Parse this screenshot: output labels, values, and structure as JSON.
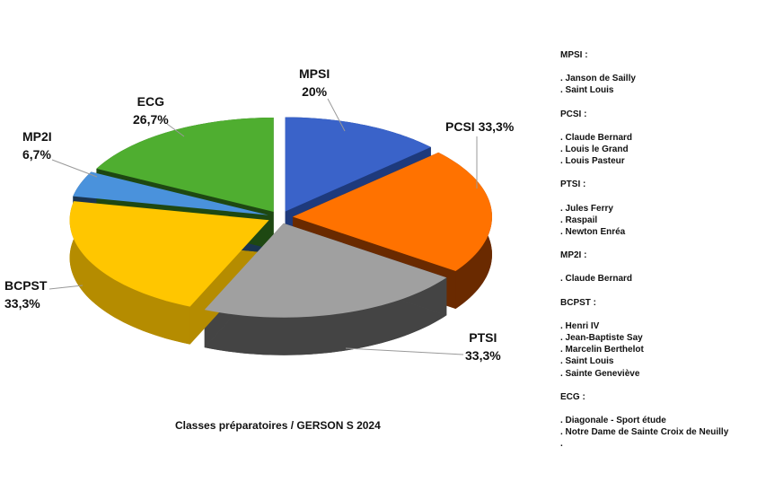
{
  "chart_data": {
    "type": "pie",
    "style": "3d-exploded",
    "title": "Classes préparatoires / GERSON S 2024",
    "legend": "none",
    "slices": [
      {
        "name": "MPSI",
        "value": 20,
        "label": "20%",
        "color": "#3a63c9",
        "dark": "#1e3a7c"
      },
      {
        "name": "PCSI",
        "value": 33.3,
        "label": "33,3%",
        "color": "#ff7200",
        "dark": "#6a2a00"
      },
      {
        "name": "PTSI",
        "value": 33.3,
        "label": "33,3%",
        "color": "#a0a0a0",
        "dark": "#454545"
      },
      {
        "name": "BCPST",
        "value": 33.3,
        "label": "33,3%",
        "color": "#ffc600",
        "dark": "#b58c00"
      },
      {
        "name": "MP2I",
        "value": 6.7,
        "label": "6,7%",
        "color": "#4a92dc",
        "dark": "#1a3550"
      },
      {
        "name": "ECG",
        "value": 26.7,
        "label": "26,7%",
        "color": "#4fae30",
        "dark": "#1e4812"
      }
    ]
  },
  "sidebar": {
    "groups": [
      {
        "heading": "MPSI :",
        "items": [
          ". Janson de Sailly",
          ". Saint Louis"
        ]
      },
      {
        "heading": "PCSI :",
        "items": [
          ". Claude Bernard",
          ". Louis le Grand",
          ". Louis Pasteur"
        ]
      },
      {
        "heading": "PTSI :",
        "items": [
          ". Jules Ferry",
          ". Raspail",
          ". Newton Enréa"
        ]
      },
      {
        "heading": "MP2I :",
        "items": [
          ". Claude Bernard"
        ]
      },
      {
        "heading": "BCPST :",
        "items": [
          ". Henri IV",
          ". Jean-Baptiste Say",
          ". Marcelin Berthelot",
          ". Saint Louis",
          ". Sainte Geneviève"
        ]
      },
      {
        "heading": "ECG :",
        "items": [
          ". Diagonale - Sport étude",
          ". Notre Dame de Sainte Croix de Neuilly",
          "."
        ]
      }
    ]
  }
}
